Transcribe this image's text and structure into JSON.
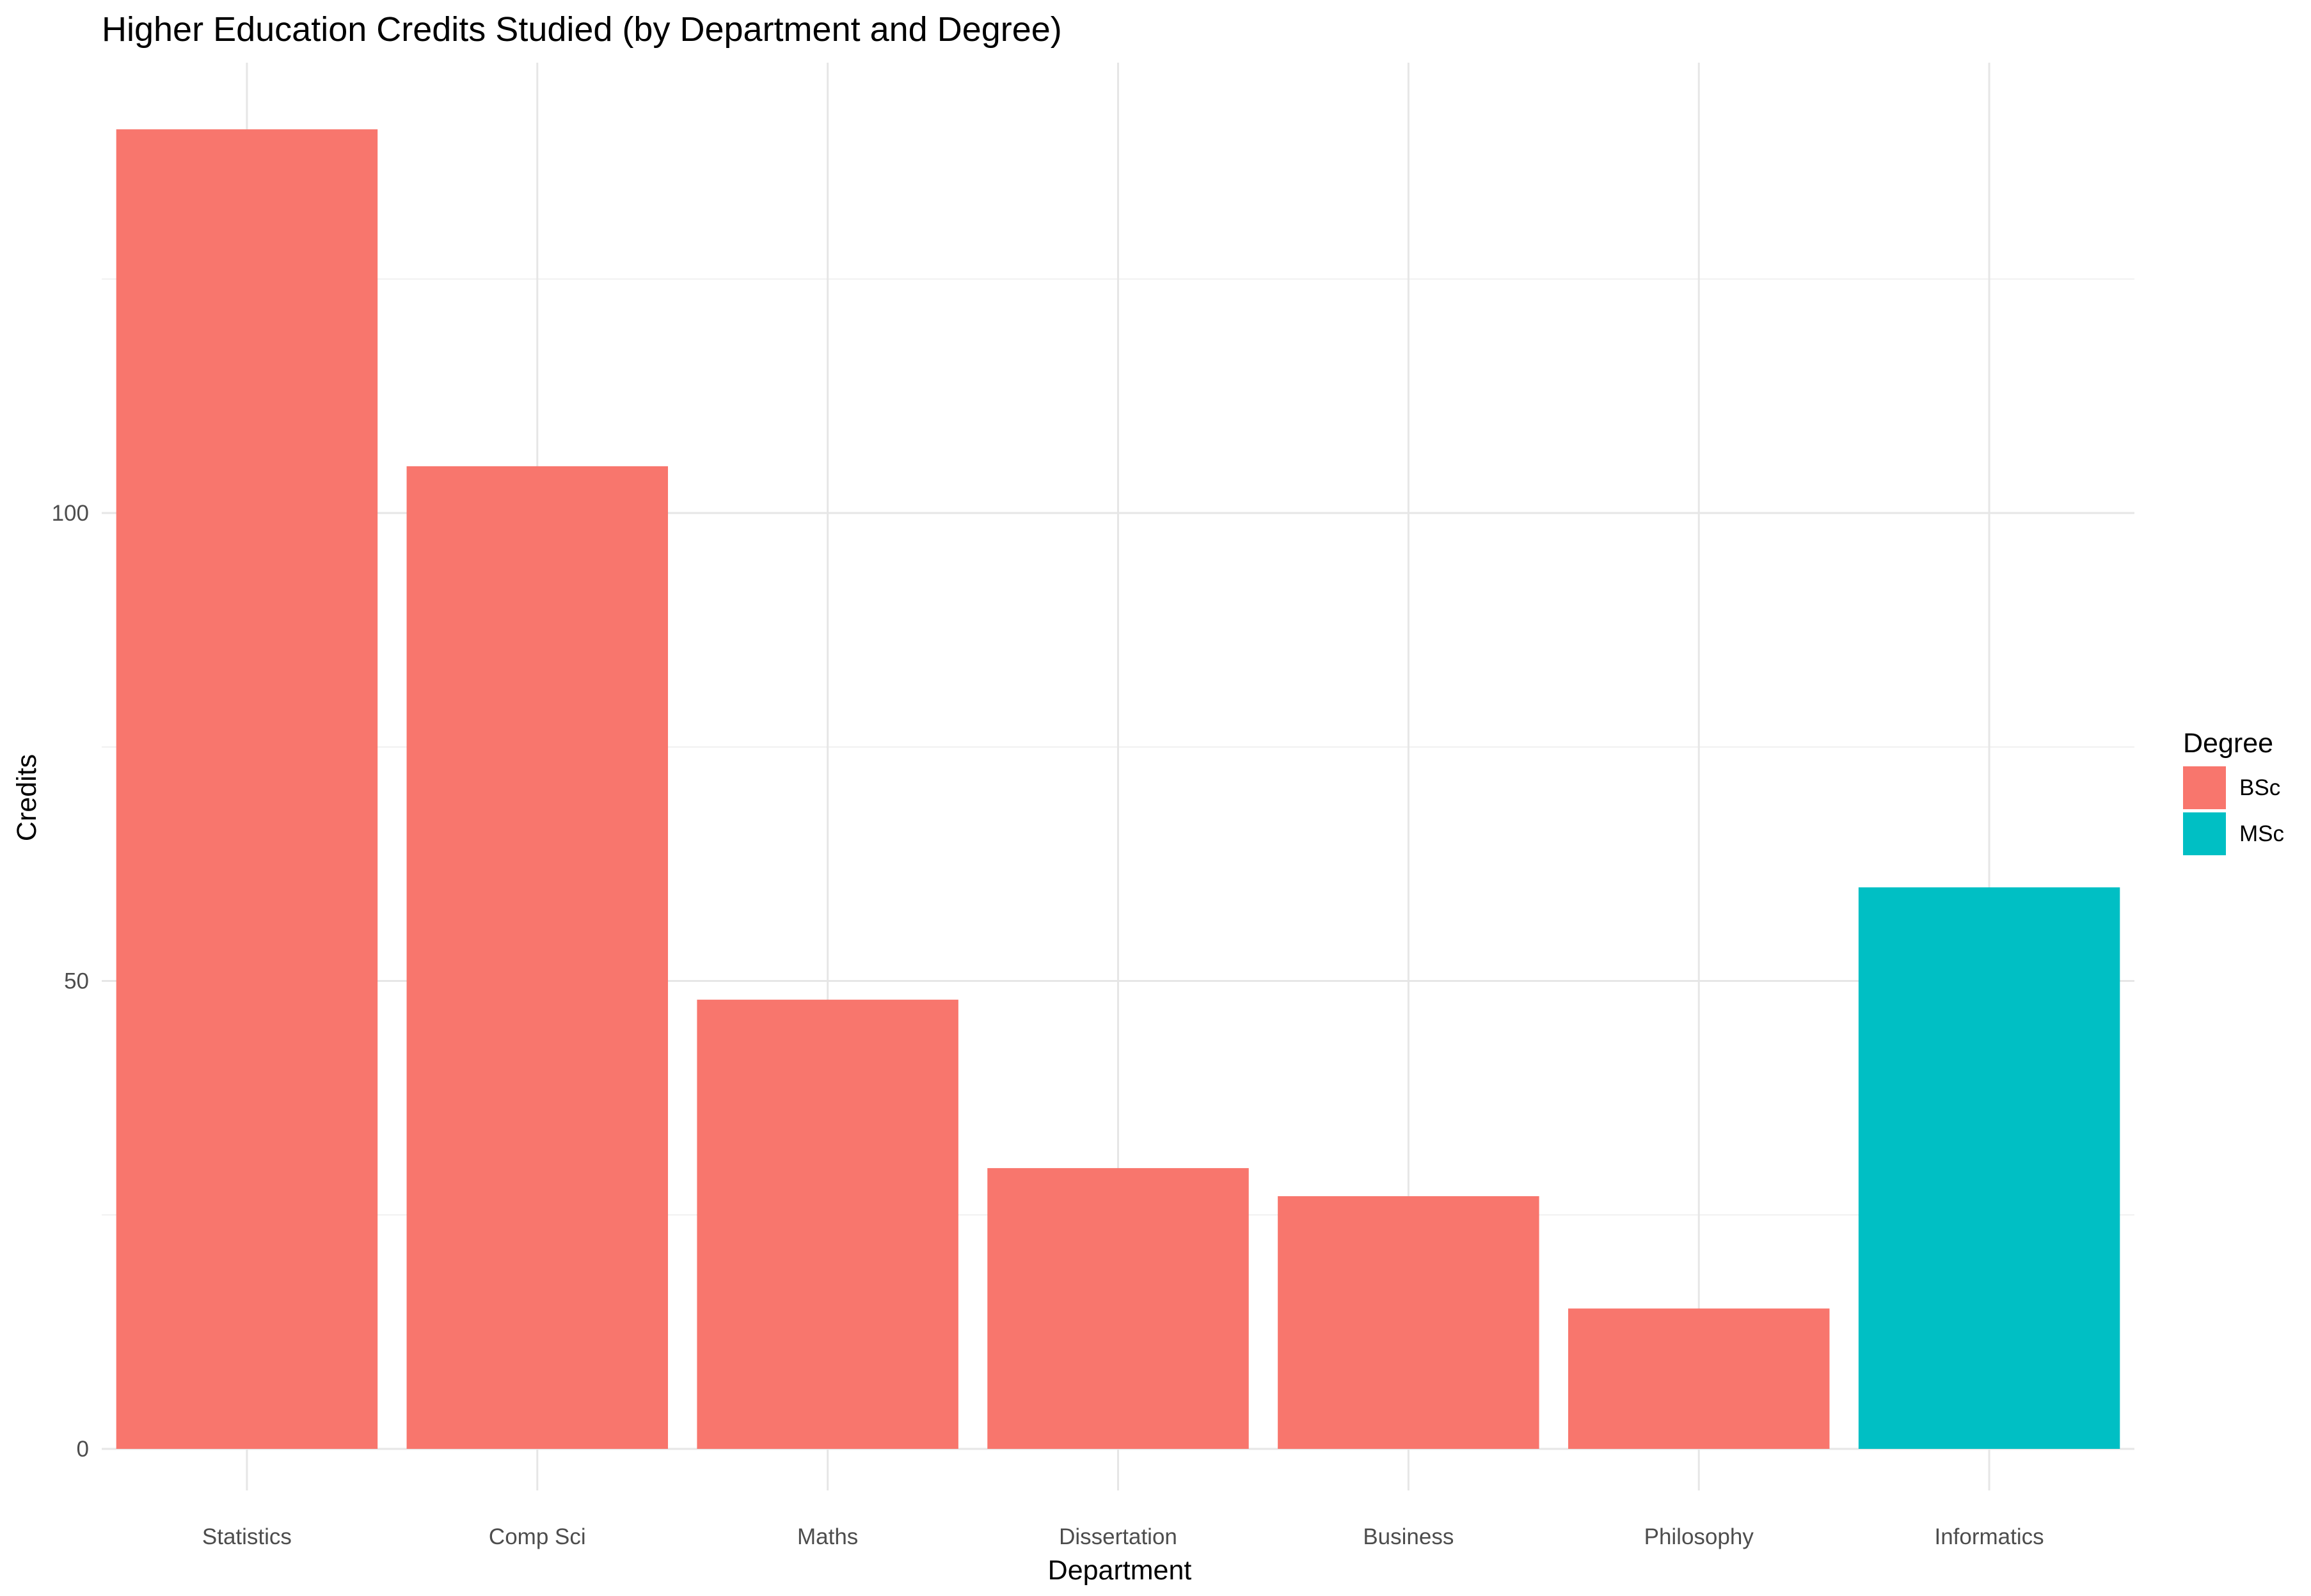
{
  "chart_data": {
    "type": "bar",
    "title": "Higher Education Credits Studied (by Department and Degree)",
    "xlabel": "Department",
    "ylabel": "Credits",
    "categories": [
      "Statistics",
      "Comp Sci",
      "Maths",
      "Dissertation",
      "Business",
      "Philosophy",
      "Informatics"
    ],
    "values": [
      141,
      105,
      48,
      30,
      27,
      15,
      60
    ],
    "groups": [
      "BSc",
      "BSc",
      "BSc",
      "BSc",
      "BSc",
      "BSc",
      "MSc"
    ],
    "ylim": [
      0,
      148
    ],
    "yticks": [
      0,
      50,
      100
    ],
    "grid": true,
    "legend": {
      "title": "Degree",
      "position": "right",
      "entries": [
        {
          "label": "BSc",
          "color": "#F8766D"
        },
        {
          "label": "MSc",
          "color": "#00BFC4"
        }
      ]
    }
  }
}
